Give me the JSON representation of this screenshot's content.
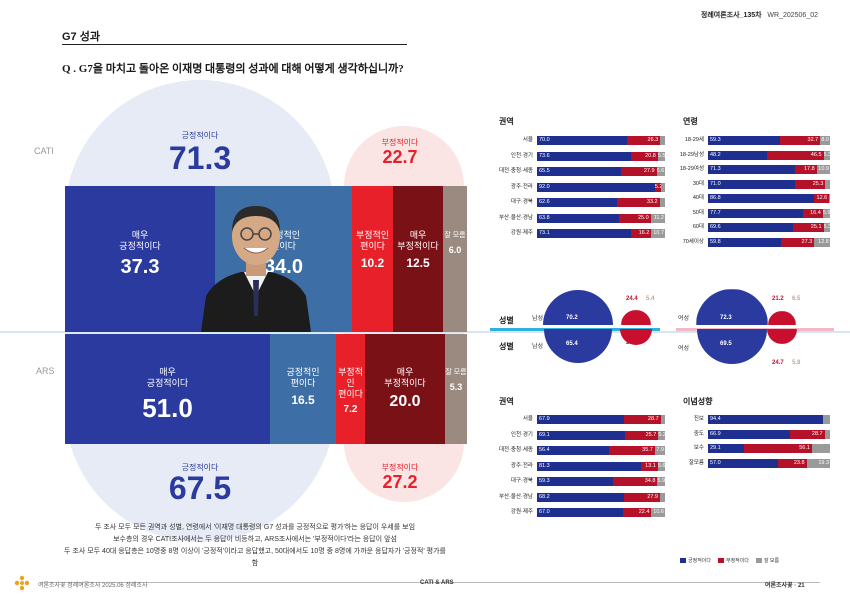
{
  "header": {
    "survey": "정례여론조사_135차",
    "code": "WR_202506_02"
  },
  "section_title": "G7 성과",
  "question": "Q . G7을 마치고 돌아온 이재명 대통령의 성과에 대해 어떻게 생각하십니까?",
  "modes": {
    "cati": "CATI",
    "ars": "ARS"
  },
  "colors": {
    "very_pos": "#2b3a9e",
    "pos": "#3d6ea5",
    "neg": "#e8202a",
    "very_neg": "#7a1116",
    "dk": "#9a8a80"
  },
  "main": {
    "cati": {
      "positive_label": "긍정적이다",
      "positive_total": "71.3",
      "negative_label": "부정적이다",
      "negative_total": "22.7",
      "segments": [
        {
          "label": "매우\n긍정적이다",
          "value": "37.3",
          "num": 37.3
        },
        {
          "label": "긍정적인\n편이다",
          "value": "34.0",
          "num": 34.0
        },
        {
          "label": "부정적인\n편이다",
          "value": "10.2",
          "num": 10.2
        },
        {
          "label": "매우\n부정적이다",
          "value": "12.5",
          "num": 12.5
        },
        {
          "label": "잘 모름",
          "value": "6.0",
          "num": 6.0
        }
      ]
    },
    "ars": {
      "positive_label": "긍정적이다",
      "positive_total": "67.5",
      "negative_label": "부정적이다",
      "negative_total": "27.2",
      "segments": [
        {
          "label": "매우\n긍정적이다",
          "value": "51.0",
          "num": 51.0
        },
        {
          "label": "긍정적인\n편이다",
          "value": "16.5",
          "num": 16.5
        },
        {
          "label": "부정적인\n편이다",
          "value": "7.2",
          "num": 7.2
        },
        {
          "label": "매우\n부정적이다",
          "value": "20.0",
          "num": 20.0
        },
        {
          "label": "잘 모름",
          "value": "5.3",
          "num": 5.3
        }
      ]
    }
  },
  "summary": [
    "두 조사 모두 모든 권역과 성별, 연령에서 '이재명 대통령의 G7 성과를 긍정적으로 평가'하는 응답이 우세를 보임",
    "보수층의 경우 CATI조사에서는 두 응답이 비등하고, ARS조사에서는 '부정적이다'라는 응답이 앞섬",
    "두 조사 모두 40대 응답층은 10명중 8명 이상이 '긍정적'이라고 응답했고, 50대에서도 10명 중 8명에 가까운 응답자가 '긍정적' 평가를 함"
  ],
  "chart_data": [
    {
      "type": "bar",
      "title": "권역",
      "survey": "CATI",
      "categories": [
        "서울",
        "인천·경기",
        "대전·충청·세종",
        "광주·전라",
        "대구·경북",
        "부산·울산·경남",
        "강원·제주"
      ],
      "series": [
        {
          "name": "긍정적이다",
          "values": [
            70.0,
            73.6,
            65.5,
            92.0,
            62.6,
            63.8,
            73.1
          ]
        },
        {
          "name": "부정적이다",
          "values": [
            26.3,
            20.8,
            27.9,
            5.2,
            33.2,
            25.0,
            16.2
          ]
        },
        {
          "name": "잘 모름",
          "values": [
            null,
            5.5,
            6.6,
            null,
            null,
            11.2,
            10.7
          ]
        }
      ]
    },
    {
      "type": "bar",
      "title": "연령",
      "survey": "CATI",
      "categories": [
        "18-29세",
        "18-29남성",
        "18-29여성",
        "30대",
        "40대",
        "50대",
        "60대",
        "70세이상"
      ],
      "series": [
        {
          "name": "긍정적이다",
          "values": [
            59.3,
            48.2,
            71.3,
            71.0,
            86.8,
            77.7,
            69.6,
            59.8
          ]
        },
        {
          "name": "부정적이다",
          "values": [
            32.7,
            46.5,
            17.8,
            25.3,
            12.6,
            16.4,
            25.1,
            27.3
          ]
        },
        {
          "name": "잘 모름",
          "values": [
            8.0,
            5.3,
            10.9,
            null,
            null,
            5.9,
            5.3,
            12.8
          ]
        }
      ]
    },
    {
      "type": "scatter",
      "title": "성별",
      "series": [
        {
          "name": "남성 CATI",
          "values": [
            70.2,
            24.4,
            5.4
          ]
        },
        {
          "name": "남성 ARS",
          "values": [
            65.4,
            29.8
          ]
        },
        {
          "name": "여성 CATI",
          "values": [
            72.3,
            21.2,
            6.5
          ]
        },
        {
          "name": "여성 ARS",
          "values": [
            69.5,
            24.7,
            5.8
          ]
        }
      ]
    },
    {
      "type": "bar",
      "title": "권역",
      "survey": "ARS",
      "categories": [
        "서울",
        "인천·경기",
        "대전·충청·세종",
        "광주·전라",
        "대구·경북",
        "부산·울산·경남",
        "강원·제주"
      ],
      "series": [
        {
          "name": "긍정적이다",
          "values": [
            67.9,
            69.1,
            56.4,
            81.3,
            59.3,
            68.2,
            67.0
          ]
        },
        {
          "name": "부정적이다",
          "values": [
            28.7,
            25.7,
            35.7,
            13.1,
            34.8,
            27.9,
            22.4
          ]
        },
        {
          "name": "잘 모름",
          "values": [
            null,
            5.2,
            7.9,
            5.6,
            5.9,
            null,
            10.6
          ]
        }
      ]
    },
    {
      "type": "bar",
      "title": "이념성향",
      "survey": "ARS",
      "categories": [
        "진보",
        "중도",
        "보수",
        "잘모름"
      ],
      "series": [
        {
          "name": "긍정적이다",
          "values": [
            94.4,
            66.9,
            29.1,
            57.0
          ]
        },
        {
          "name": "부정적이다",
          "values": [
            null,
            28.7,
            56.1,
            23.8
          ]
        },
        {
          "name": "잘 모름",
          "values": [
            null,
            null,
            null,
            19.3
          ]
        }
      ]
    }
  ],
  "legend": [
    "긍정적이다",
    "부정적이다",
    "잘 모름"
  ],
  "footer": {
    "left": "여론조사꽃 정례여론조사 2025.06 정례조사",
    "center": "CATI & ARS",
    "right": "여론조사꽃",
    "page": "21"
  }
}
